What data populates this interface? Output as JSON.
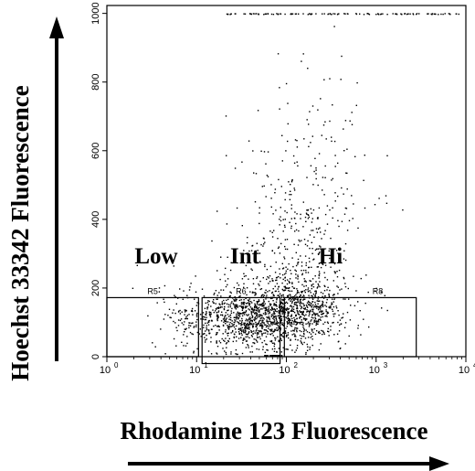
{
  "chart_data": {
    "type": "scatter",
    "title": "",
    "xlabel": "Rhodamine 123 Fluorescence",
    "ylabel": "Hoechst 33342 Fluorescence",
    "x_scale": "log",
    "xlim": [
      1,
      10000
    ],
    "ylim": [
      0,
      1023
    ],
    "x_ticks": [
      {
        "value": 1,
        "base": "10",
        "exp": "0"
      },
      {
        "value": 10,
        "base": "10",
        "exp": "1"
      },
      {
        "value": 100,
        "base": "10",
        "exp": "2"
      },
      {
        "value": 1000,
        "base": "10",
        "exp": "3"
      },
      {
        "value": 10000,
        "base": "10",
        "exp": "4"
      }
    ],
    "y_ticks": [
      {
        "value": 0,
        "label": "0"
      },
      {
        "value": 200,
        "label": "200"
      },
      {
        "value": 400,
        "label": "400"
      },
      {
        "value": 600,
        "label": "600"
      },
      {
        "value": 800,
        "label": "800"
      },
      {
        "value": 1000,
        "label": "1000"
      }
    ],
    "gates": [
      {
        "name": "Low",
        "region": "R5",
        "x0": 1.0,
        "x1": 10.5,
        "y0": 0,
        "y1": 172
      },
      {
        "name": "Int",
        "region": "R6",
        "x0": 11.5,
        "x1": 85,
        "y0": -20,
        "y1": 172
      },
      {
        "name": "Hi",
        "region": "R8",
        "x0": 95,
        "x1": 2800,
        "y0": 0,
        "y1": 172
      }
    ],
    "clusters": [
      {
        "count": 900,
        "x_log_mean": 1.55,
        "x_log_sd": 0.38,
        "y_mean": 110,
        "y_sd": 45
      },
      {
        "count": 700,
        "x_log_mean": 2.05,
        "x_log_sd": 0.32,
        "y_mean": 140,
        "y_sd": 55
      },
      {
        "count": 300,
        "x_log_mean": 2.15,
        "x_log_sd": 0.35,
        "y_mean": 300,
        "y_sd": 120
      },
      {
        "count": 140,
        "x_log_mean": 2.25,
        "x_log_sd": 0.35,
        "y_mean": 550,
        "y_sd": 180
      },
      {
        "count": 80,
        "x_log_mean": 1.2,
        "x_log_sd": 0.5,
        "y_mean": 140,
        "y_sd": 80
      }
    ],
    "saturated_top": {
      "y": 1000,
      "x_log_min": 1.3,
      "x_log_max": 3.95,
      "count": 120
    },
    "gate_floor": {
      "y": 5,
      "x_log_min": 1.75,
      "x_log_max": 1.95,
      "count": 25
    }
  },
  "arrows": {
    "x_arrow": "right",
    "y_arrow": "up"
  }
}
